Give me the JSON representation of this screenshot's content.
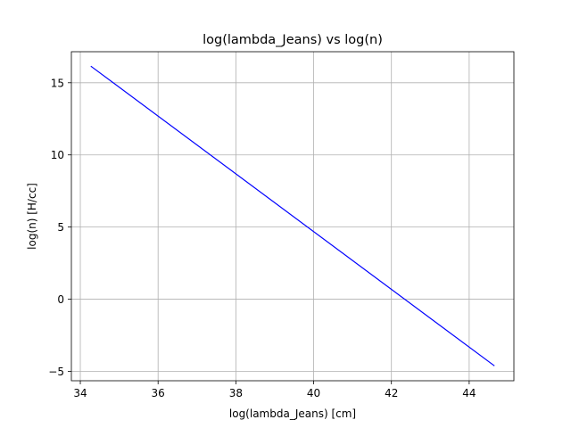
{
  "chart_data": {
    "type": "line",
    "title": "log(lambda_Jeans) vs log(n)",
    "xlabel": "log(lambda_Jeans) [cm]",
    "ylabel": "log(n) [H/cc]",
    "xlim": [
      33.77,
      45.15
    ],
    "ylim": [
      -5.65,
      17.15
    ],
    "xticks": [
      34,
      36,
      38,
      40,
      42,
      44
    ],
    "yticks": [
      -5,
      0,
      5,
      10,
      15
    ],
    "grid": true,
    "series": [
      {
        "color": "#0000ff",
        "x": [
          34.27,
          44.65
        ],
        "y": [
          16.15,
          -4.62
        ]
      }
    ]
  }
}
